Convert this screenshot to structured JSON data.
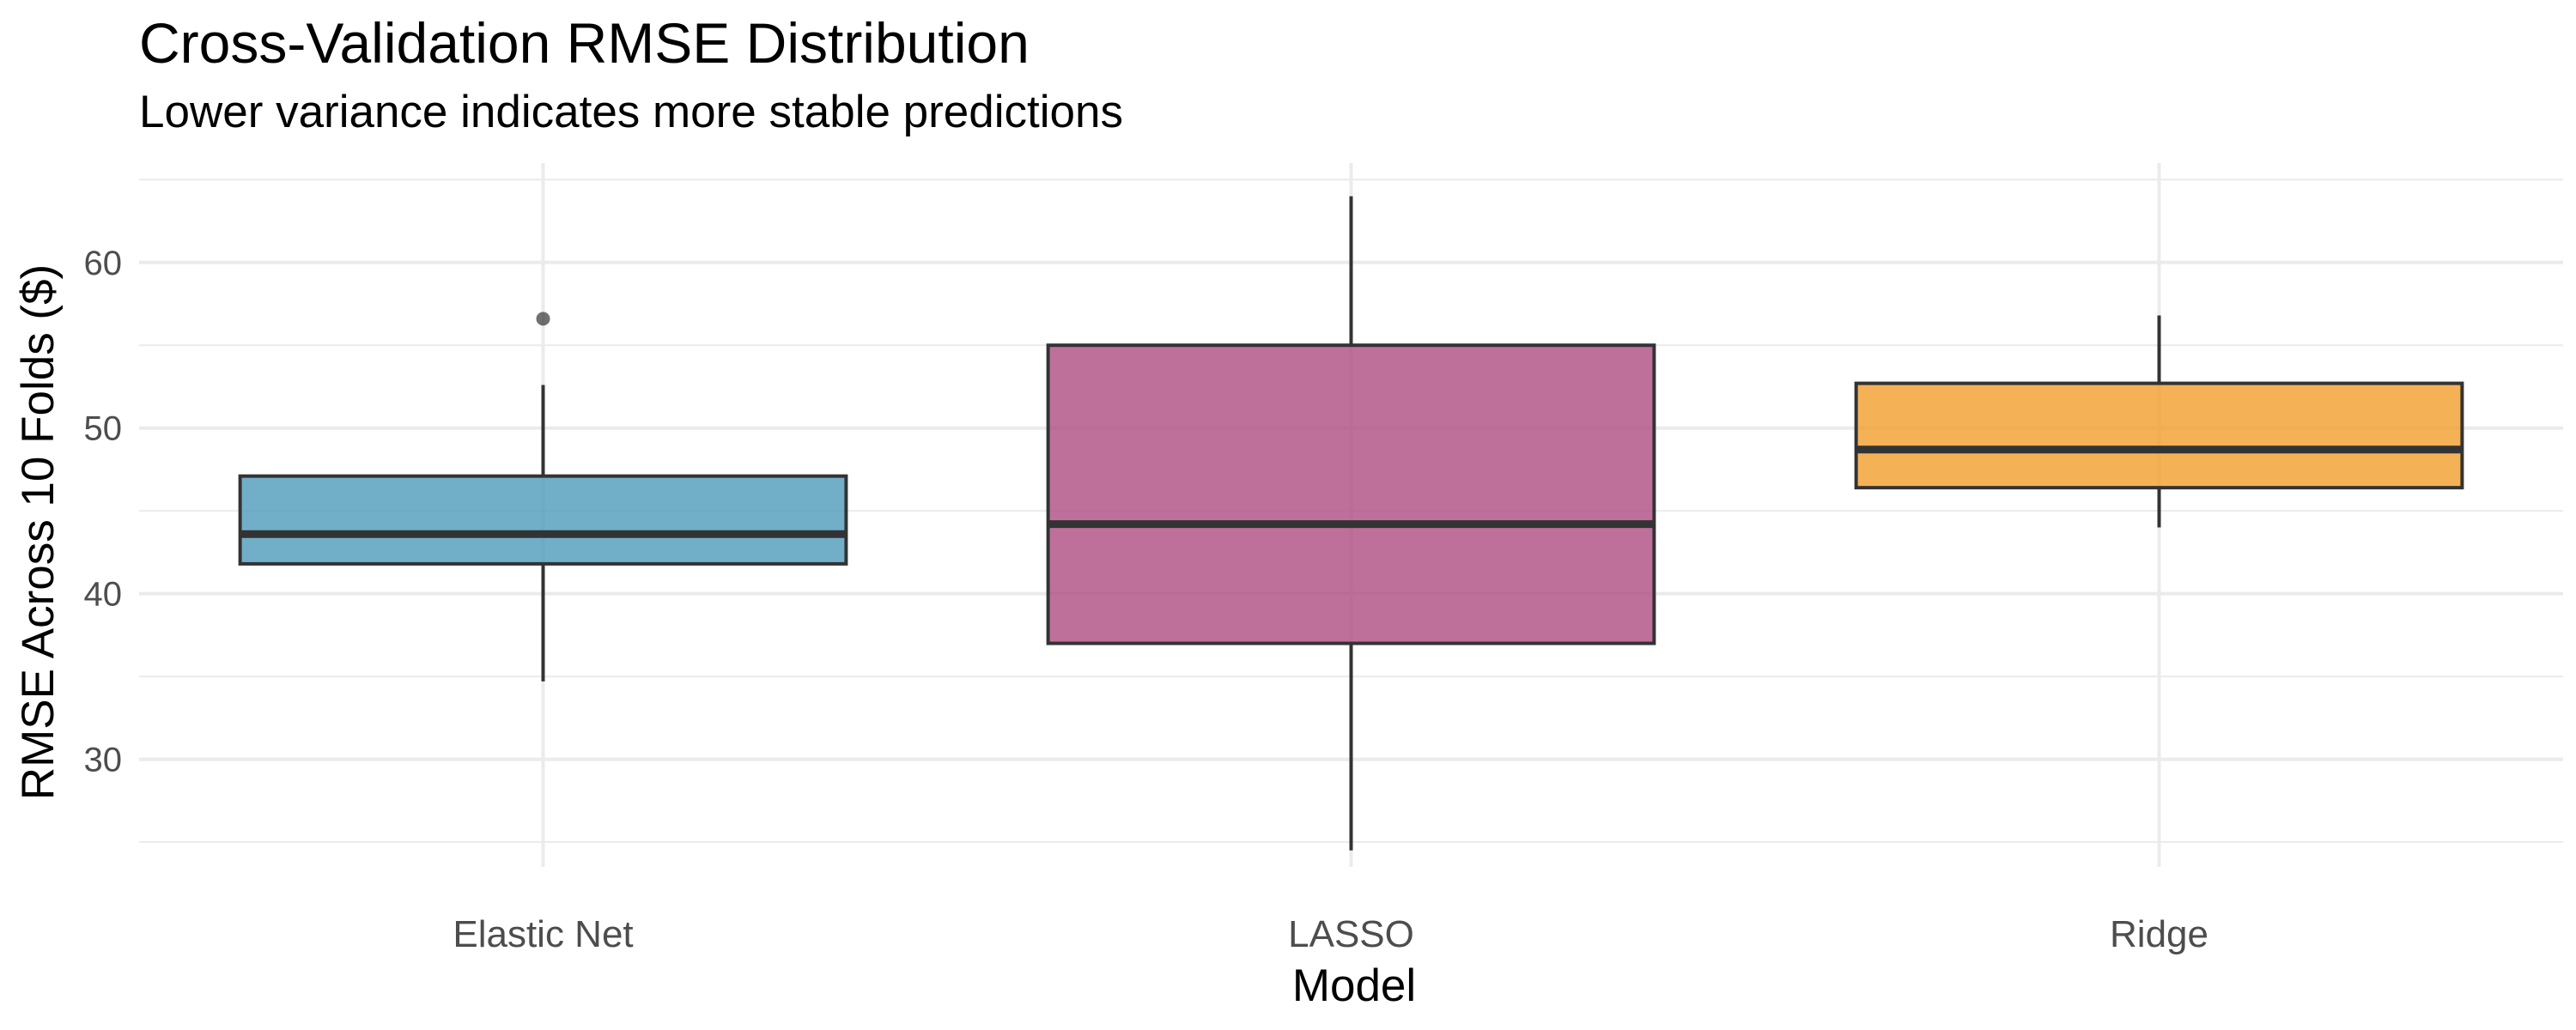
{
  "chart_data": {
    "type": "boxplot",
    "title": "Cross-Validation RMSE Distribution",
    "subtitle": "Lower variance indicates more stable predictions",
    "xlabel": "Model",
    "ylabel": "RMSE Across 10 Folds ($)",
    "ylim": [
      23.5,
      66.0
    ],
    "yticks": [
      30,
      40,
      50,
      60
    ],
    "grid": true,
    "categories": [
      "Elastic Net",
      "LASSO",
      "Ridge"
    ],
    "boxes": [
      {
        "category": "Elastic Net",
        "color": "#4E9BBC",
        "whisker_low": 34.7,
        "q1": 41.8,
        "median": 43.6,
        "q3": 47.1,
        "whisker_high": 52.6,
        "outliers": [
          56.6
        ]
      },
      {
        "category": "LASSO",
        "color": "#AE4C81",
        "whisker_low": 24.5,
        "q1": 37.0,
        "median": 44.2,
        "q3": 55.0,
        "whisker_high": 64.0,
        "outliers": []
      },
      {
        "category": "Ridge",
        "color": "#F19E2B",
        "whisker_low": 44.0,
        "q1": 46.4,
        "median": 48.7,
        "q3": 52.7,
        "whisker_high": 56.8,
        "outliers": []
      }
    ]
  }
}
